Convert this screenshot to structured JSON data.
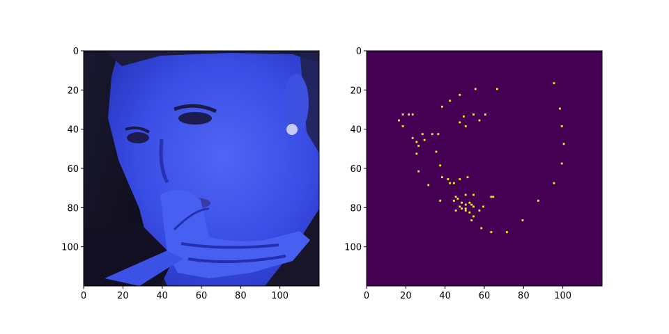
{
  "colors": {
    "background": "#ffffff",
    "axis": "#000000",
    "heat_bg": "#440154",
    "heat_point": "#fde725",
    "face_dark": "#14121f",
    "face_mid": "#2a3ad8",
    "face_light": "#4a5ef0"
  },
  "chart_data": [
    {
      "type": "image",
      "panel": "left",
      "description_hidden": true,
      "xlim": [
        0,
        120
      ],
      "ylim": [
        120,
        0
      ],
      "xticks": [
        0,
        20,
        40,
        60,
        80,
        100
      ],
      "yticks": [
        0,
        20,
        40,
        60,
        80,
        100
      ],
      "title": "",
      "xlabel": "",
      "ylabel": ""
    },
    {
      "type": "heatmap",
      "panel": "right",
      "xlim": [
        0,
        120
      ],
      "ylim": [
        120,
        0
      ],
      "xticks": [
        0,
        20,
        40,
        60,
        80,
        100
      ],
      "yticks": [
        0,
        20,
        40,
        60,
        80,
        100
      ],
      "title": "",
      "xlabel": "",
      "ylabel": "",
      "points": [
        [
          95,
          16
        ],
        [
          55,
          19
        ],
        [
          66,
          19
        ],
        [
          47,
          22
        ],
        [
          42,
          25
        ],
        [
          98,
          29
        ],
        [
          38,
          28
        ],
        [
          18,
          32
        ],
        [
          21,
          32
        ],
        [
          23,
          32
        ],
        [
          54,
          32
        ],
        [
          60,
          32
        ],
        [
          16,
          35
        ],
        [
          49,
          33
        ],
        [
          57,
          35
        ],
        [
          47,
          36
        ],
        [
          99,
          38
        ],
        [
          18,
          38
        ],
        [
          50,
          38
        ],
        [
          28,
          42
        ],
        [
          33,
          42
        ],
        [
          36,
          42
        ],
        [
          23,
          44
        ],
        [
          29,
          45
        ],
        [
          25,
          46
        ],
        [
          26,
          48
        ],
        [
          100,
          47
        ],
        [
          35,
          51
        ],
        [
          25,
          52
        ],
        [
          99,
          57
        ],
        [
          37,
          58
        ],
        [
          26,
          61
        ],
        [
          95,
          67
        ],
        [
          38,
          64
        ],
        [
          41,
          65
        ],
        [
          47,
          65
        ],
        [
          51,
          64
        ],
        [
          42,
          67
        ],
        [
          44,
          67
        ],
        [
          31,
          68
        ],
        [
          54,
          73
        ],
        [
          50,
          73
        ],
        [
          45,
          74
        ],
        [
          46,
          75
        ],
        [
          63,
          74
        ],
        [
          64,
          74
        ],
        [
          44,
          76
        ],
        [
          37,
          76
        ],
        [
          87,
          76
        ],
        [
          48,
          77
        ],
        [
          52,
          77
        ],
        [
          50,
          78
        ],
        [
          53,
          78
        ],
        [
          47,
          79
        ],
        [
          48,
          80
        ],
        [
          50,
          80
        ],
        [
          54,
          79
        ],
        [
          59,
          79
        ],
        [
          45,
          81
        ],
        [
          50,
          81
        ],
        [
          52,
          82
        ],
        [
          57,
          81
        ],
        [
          54,
          84
        ],
        [
          53,
          86
        ],
        [
          79,
          86
        ],
        [
          58,
          90
        ],
        [
          63,
          92
        ],
        [
          71,
          92
        ]
      ]
    }
  ]
}
